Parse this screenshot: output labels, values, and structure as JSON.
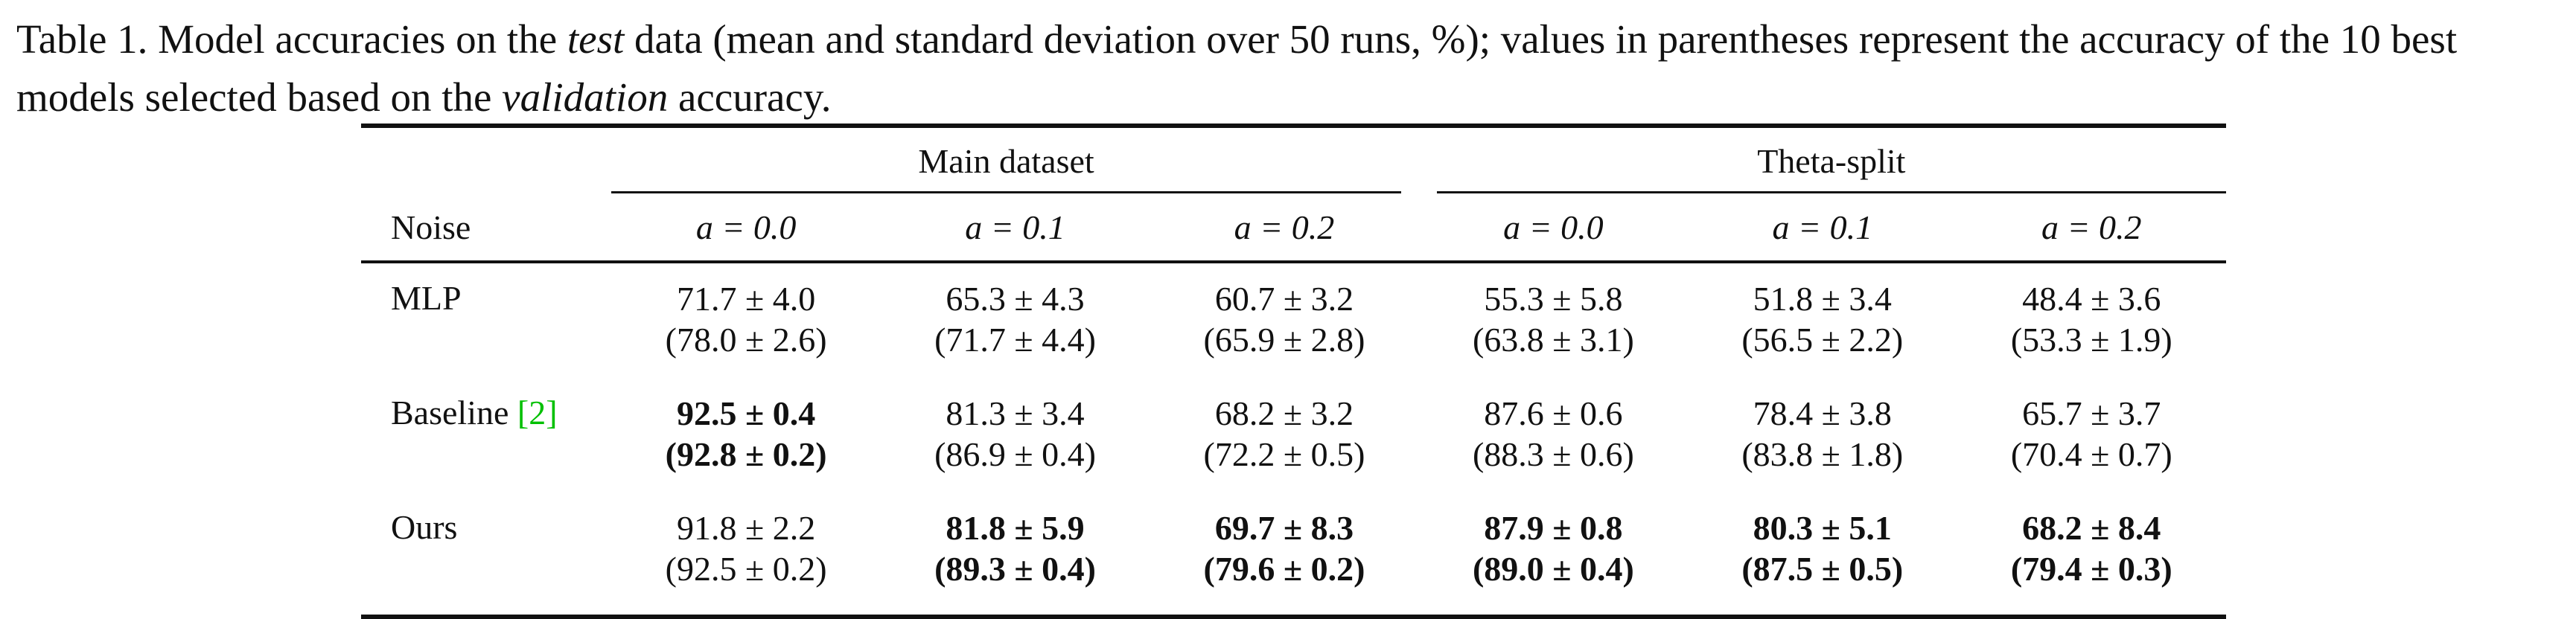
{
  "caption": {
    "prefix": "Table 1. Model accuracies on the ",
    "em1": "test",
    "middle": " data (mean and standard deviation over 50 runs, %); values in parentheses represent the accuracy of the 10 best models selected based on the ",
    "em2": "validation",
    "suffix": " accuracy."
  },
  "table": {
    "groups": [
      "Main dataset",
      "Theta-split"
    ],
    "row_header": "Noise",
    "columns": [
      "a = 0.0",
      "a = 0.1",
      "a = 0.2",
      "a = 0.0",
      "a = 0.1",
      "a = 0.2"
    ],
    "rows": [
      {
        "label": "MLP",
        "cite": "",
        "cells": [
          {
            "top": "71.7 ± 4.0",
            "bottom": "(78.0 ± 2.6)",
            "bold_top": false,
            "bold_bottom": false
          },
          {
            "top": "65.3 ± 4.3",
            "bottom": "(71.7 ± 4.4)",
            "bold_top": false,
            "bold_bottom": false
          },
          {
            "top": "60.7 ± 3.2",
            "bottom": "(65.9 ± 2.8)",
            "bold_top": false,
            "bold_bottom": false
          },
          {
            "top": "55.3 ± 5.8",
            "bottom": "(63.8 ± 3.1)",
            "bold_top": false,
            "bold_bottom": false
          },
          {
            "top": "51.8 ± 3.4",
            "bottom": "(56.5 ± 2.2)",
            "bold_top": false,
            "bold_bottom": false
          },
          {
            "top": "48.4 ± 3.6",
            "bottom": "(53.3 ± 1.9)",
            "bold_top": false,
            "bold_bottom": false
          }
        ]
      },
      {
        "label": "Baseline ",
        "cite": "[2]",
        "cells": [
          {
            "top": "92.5 ± 0.4",
            "bottom": "(92.8 ± 0.2)",
            "bold_top": true,
            "bold_bottom": true
          },
          {
            "top": "81.3 ± 3.4",
            "bottom": "(86.9 ± 0.4)",
            "bold_top": false,
            "bold_bottom": false
          },
          {
            "top": "68.2 ± 3.2",
            "bottom": "(72.2 ± 0.5)",
            "bold_top": false,
            "bold_bottom": false
          },
          {
            "top": "87.6 ± 0.6",
            "bottom": "(88.3 ± 0.6)",
            "bold_top": false,
            "bold_bottom": false
          },
          {
            "top": "78.4 ± 3.8",
            "bottom": "(83.8 ± 1.8)",
            "bold_top": false,
            "bold_bottom": false
          },
          {
            "top": "65.7 ± 3.7",
            "bottom": "(70.4 ± 0.7)",
            "bold_top": false,
            "bold_bottom": false
          }
        ]
      },
      {
        "label": "Ours",
        "cite": "",
        "cells": [
          {
            "top": "91.8 ± 2.2",
            "bottom": "(92.5 ± 0.2)",
            "bold_top": false,
            "bold_bottom": false
          },
          {
            "top": "81.8 ± 5.9",
            "bottom": "(89.3 ± 0.4)",
            "bold_top": true,
            "bold_bottom": true
          },
          {
            "top": "69.7 ± 8.3",
            "bottom": "(79.6 ± 0.2)",
            "bold_top": true,
            "bold_bottom": true
          },
          {
            "top": "87.9 ± 0.8",
            "bottom": "(89.0 ± 0.4)",
            "bold_top": true,
            "bold_bottom": true
          },
          {
            "top": "80.3 ± 5.1",
            "bottom": "(87.5 ± 0.5)",
            "bold_top": true,
            "bold_bottom": true
          },
          {
            "top": "68.2 ± 8.4",
            "bottom": "(79.4 ± 0.3)",
            "bold_top": true,
            "bold_bottom": true
          }
        ]
      }
    ]
  },
  "colors": {
    "citation": "#00c000",
    "text": "#111111",
    "background": "#ffffff"
  }
}
